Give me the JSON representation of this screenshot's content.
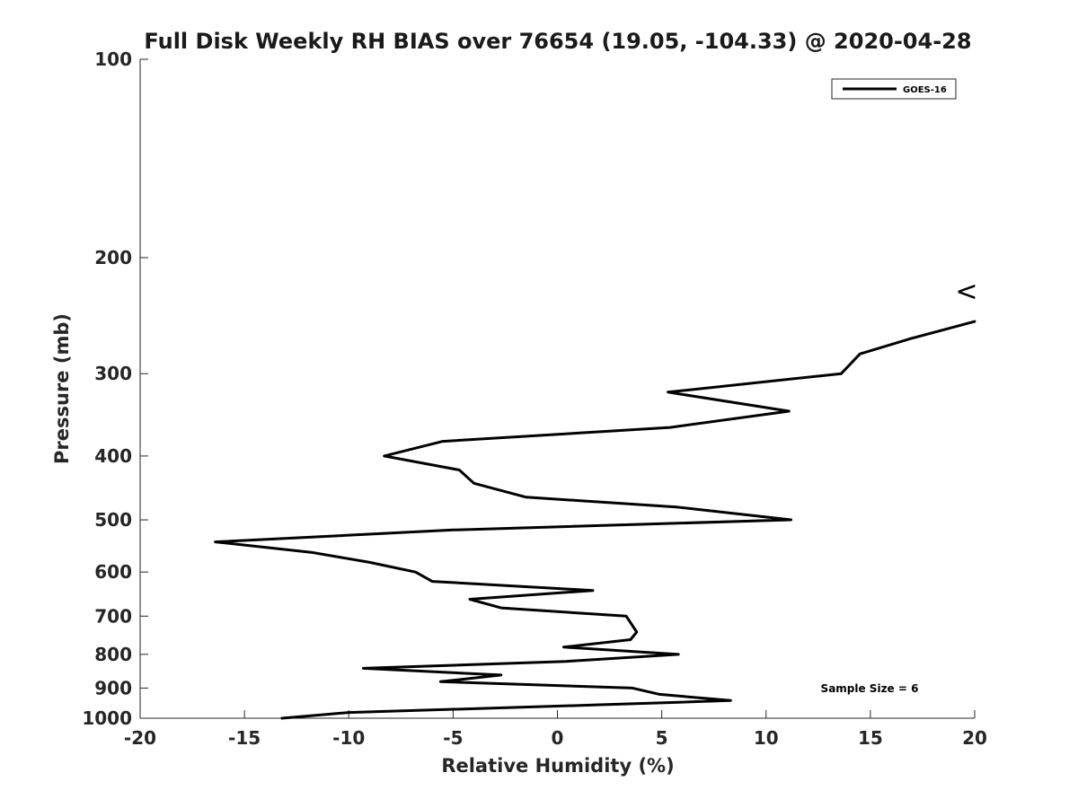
{
  "chart_data": {
    "type": "line",
    "title": "Full Disk Weekly RH BIAS over 76654 (19.05, -104.33) @ 2020-04-28",
    "xlabel": "Relative Humidity (%)",
    "ylabel": "Pressure (mb)",
    "xlim": [
      -20,
      20
    ],
    "ylim": [
      100,
      1000
    ],
    "yscale": "log",
    "y_reversed": true,
    "grid": false,
    "legend_position": "top-right",
    "xticks": [
      "-20",
      "-15",
      "-10",
      "-5",
      "0",
      "5",
      "10",
      "15",
      "20"
    ],
    "yticks": [
      "100",
      "200",
      "300",
      "400",
      "500",
      "600",
      "700",
      "800",
      "900",
      "1000"
    ],
    "annotation": "Sample Size = 6",
    "overflow_marker": "<",
    "overflow_marker_pressure": 225,
    "series": [
      {
        "name": "GOES-16",
        "color": "#000000",
        "points": [
          {
            "x": 20.0,
            "p": 250
          },
          {
            "x": 17.0,
            "p": 265
          },
          {
            "x": 14.5,
            "p": 280
          },
          {
            "x": 13.6,
            "p": 300
          },
          {
            "x": 5.3,
            "p": 320
          },
          {
            "x": 11.1,
            "p": 342
          },
          {
            "x": 5.4,
            "p": 362
          },
          {
            "x": -5.5,
            "p": 380
          },
          {
            "x": -8.3,
            "p": 400
          },
          {
            "x": -4.7,
            "p": 420
          },
          {
            "x": -4.0,
            "p": 440
          },
          {
            "x": -1.5,
            "p": 462
          },
          {
            "x": 5.7,
            "p": 478
          },
          {
            "x": 11.2,
            "p": 500
          },
          {
            "x": -5.0,
            "p": 518
          },
          {
            "x": -16.4,
            "p": 540
          },
          {
            "x": -11.8,
            "p": 560
          },
          {
            "x": -9.0,
            "p": 580
          },
          {
            "x": -6.8,
            "p": 600
          },
          {
            "x": -6.0,
            "p": 620
          },
          {
            "x": 1.7,
            "p": 640
          },
          {
            "x": -4.2,
            "p": 660
          },
          {
            "x": -2.7,
            "p": 680
          },
          {
            "x": 3.3,
            "p": 700
          },
          {
            "x": 3.8,
            "p": 740
          },
          {
            "x": 3.5,
            "p": 760
          },
          {
            "x": 0.3,
            "p": 780
          },
          {
            "x": 5.8,
            "p": 800
          },
          {
            "x": 0.4,
            "p": 820
          },
          {
            "x": -9.3,
            "p": 840
          },
          {
            "x": -2.7,
            "p": 860
          },
          {
            "x": -5.6,
            "p": 880
          },
          {
            "x": 3.6,
            "p": 900
          },
          {
            "x": 4.9,
            "p": 920
          },
          {
            "x": 8.3,
            "p": 940
          },
          {
            "x": 1.7,
            "p": 955
          },
          {
            "x": -10.0,
            "p": 980
          },
          {
            "x": -13.2,
            "p": 1000
          }
        ]
      }
    ]
  }
}
